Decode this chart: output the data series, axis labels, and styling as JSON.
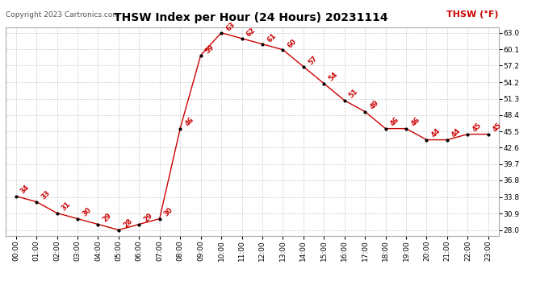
{
  "title": "THSW Index per Hour (24 Hours) 20231114",
  "copyright": "Copyright 2023 Cartronics.com",
  "legend_label": "THSW (°F)",
  "hours": [
    0,
    1,
    2,
    3,
    4,
    5,
    6,
    7,
    8,
    9,
    10,
    11,
    12,
    13,
    14,
    15,
    16,
    17,
    18,
    19,
    20,
    21,
    22,
    23
  ],
  "values": [
    34,
    33,
    31,
    30,
    29,
    28,
    29,
    30,
    46,
    59,
    63,
    62,
    61,
    60,
    57,
    54,
    51,
    49,
    46,
    46,
    44,
    44,
    45,
    45
  ],
  "yticks": [
    28.0,
    30.9,
    33.8,
    36.8,
    39.7,
    42.6,
    45.5,
    48.4,
    51.3,
    54.2,
    57.2,
    60.1,
    63.0
  ],
  "ylim": [
    27.0,
    64.0
  ],
  "line_color": "#cc0000",
  "marker_color": "#000000",
  "label_color": "#cc0000",
  "grid_color": "#cccccc",
  "background_color": "#ffffff",
  "title_fontsize": 10,
  "copyright_fontsize": 6.5,
  "label_fontsize": 6,
  "legend_fontsize": 8,
  "tick_fontsize": 6.5
}
